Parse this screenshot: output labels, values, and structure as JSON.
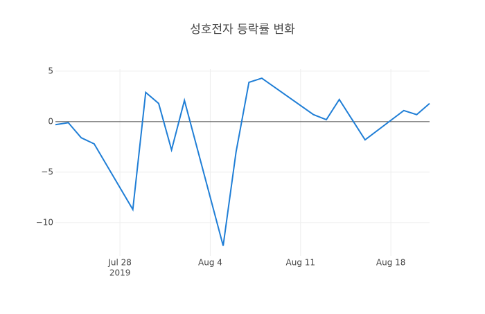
{
  "chart_data": {
    "type": "line",
    "title": "성호전자 등락률 변화",
    "x": [
      "2019-07-23",
      "2019-07-24",
      "2019-07-25",
      "2019-07-26",
      "2019-07-29",
      "2019-07-30",
      "2019-07-31",
      "2019-08-01",
      "2019-08-02",
      "2019-08-05",
      "2019-08-06",
      "2019-08-07",
      "2019-08-08",
      "2019-08-09",
      "2019-08-12",
      "2019-08-13",
      "2019-08-14",
      "2019-08-16",
      "2019-08-19",
      "2019-08-20",
      "2019-08-21"
    ],
    "values": [
      -0.3,
      -0.1,
      -1.6,
      -2.2,
      -8.7,
      2.9,
      1.8,
      -2.8,
      2.1,
      -12.3,
      -3.0,
      3.9,
      4.3,
      3.4,
      0.7,
      0.2,
      2.2,
      -1.8,
      1.1,
      0.7,
      1.8
    ],
    "color": "#1f7ed6",
    "xlim": [
      "2019-07-23",
      "2019-08-21"
    ],
    "xticks": [
      {
        "value": "2019-07-28",
        "label": "Jul 28",
        "sublabel": "2019"
      },
      {
        "value": "2019-08-04",
        "label": "Aug 4"
      },
      {
        "value": "2019-08-11",
        "label": "Aug 11"
      },
      {
        "value": "2019-08-18",
        "label": "Aug 18"
      }
    ],
    "ylim": [
      -13.3,
      5.2
    ],
    "yticks": [
      {
        "value": -10,
        "label": "−10"
      },
      {
        "value": -5,
        "label": "−5"
      },
      0,
      5
    ],
    "grid": true
  }
}
